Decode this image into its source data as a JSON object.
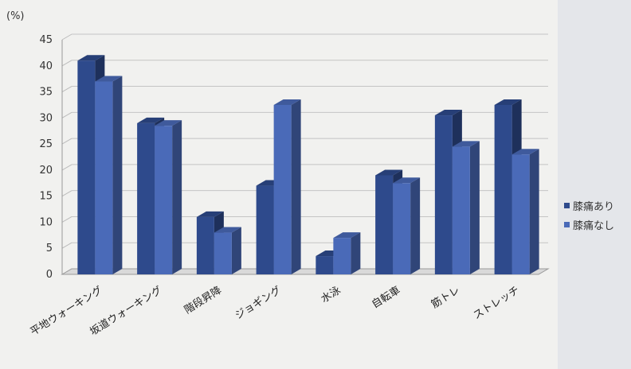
{
  "chart_data": {
    "type": "bar",
    "unit_label": "(%)",
    "categories": [
      "平地ウォーキング",
      "坂道ウォーキング",
      "階段昇降",
      "ジョギング",
      "水泳",
      "自転車",
      "筋トレ",
      "ストレッチ"
    ],
    "series": [
      {
        "name": "膝痛あり",
        "color": "#2e4a8c",
        "values": [
          41,
          29,
          11,
          17,
          3.5,
          19,
          30.5,
          32.5
        ]
      },
      {
        "name": "膝痛なし",
        "color": "#4a6ab8",
        "values": [
          37,
          28.5,
          8,
          32.5,
          7,
          17.5,
          24.5,
          23
        ]
      }
    ],
    "ylim": [
      0,
      45
    ],
    "yticks": [
      0,
      5,
      10,
      15,
      20,
      25,
      30,
      35,
      40,
      45
    ],
    "grid": true,
    "legend_position": "right"
  }
}
